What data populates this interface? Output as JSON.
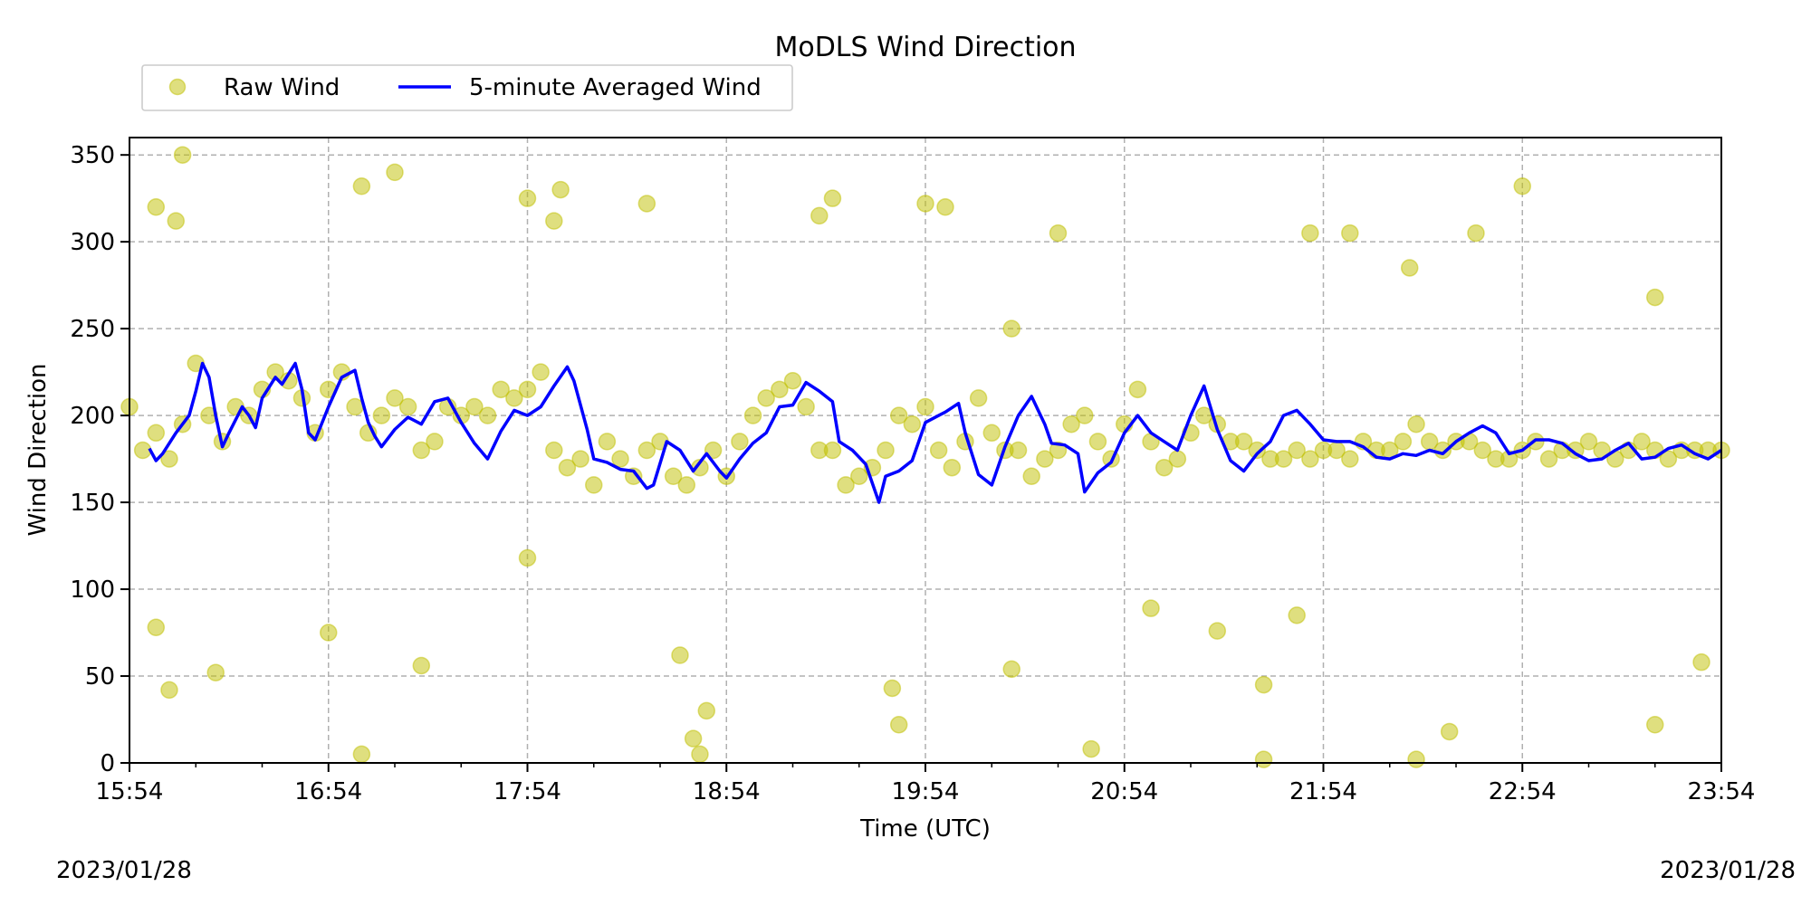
{
  "chart_data": {
    "type": "scatter",
    "title": "MoDLS Wind Direction",
    "xlabel": "Time (UTC)",
    "ylabel": "Wind Direction",
    "x_start_label": "15:54",
    "x_end_label": "23:54",
    "xticks": [
      "15:54",
      "16:54",
      "17:54",
      "18:54",
      "19:54",
      "20:54",
      "21:54",
      "22:54",
      "23:54"
    ],
    "yticks": [
      0,
      50,
      100,
      150,
      200,
      250,
      300,
      350
    ],
    "ylim": [
      0,
      360
    ],
    "grid": true,
    "legend_position": "above-left",
    "date_left": "2023/01/28",
    "date_right": "2023/01/28",
    "series": [
      {
        "name": "Raw Wind",
        "style": "scatter",
        "color": "#bfbf00",
        "values": [
          [
            "15:54",
            205
          ],
          [
            "15:58",
            180
          ],
          [
            "16:02",
            190
          ],
          [
            "16:06",
            175
          ],
          [
            "16:10",
            195
          ],
          [
            "16:14",
            230
          ],
          [
            "16:18",
            200
          ],
          [
            "16:22",
            185
          ],
          [
            "16:26",
            205
          ],
          [
            "16:30",
            200
          ],
          [
            "16:34",
            215
          ],
          [
            "16:38",
            225
          ],
          [
            "16:42",
            220
          ],
          [
            "16:46",
            210
          ],
          [
            "16:50",
            190
          ],
          [
            "16:54",
            215
          ],
          [
            "16:58",
            225
          ],
          [
            "17:02",
            205
          ],
          [
            "17:06",
            190
          ],
          [
            "17:10",
            200
          ],
          [
            "17:14",
            210
          ],
          [
            "17:18",
            205
          ],
          [
            "17:22",
            180
          ],
          [
            "17:26",
            185
          ],
          [
            "17:30",
            205
          ],
          [
            "17:34",
            200
          ],
          [
            "17:38",
            205
          ],
          [
            "17:42",
            200
          ],
          [
            "17:46",
            215
          ],
          [
            "17:50",
            210
          ],
          [
            "17:54",
            215
          ],
          [
            "17:58",
            225
          ],
          [
            "18:02",
            180
          ],
          [
            "18:06",
            170
          ],
          [
            "18:10",
            175
          ],
          [
            "18:14",
            160
          ],
          [
            "18:18",
            185
          ],
          [
            "18:22",
            175
          ],
          [
            "18:26",
            165
          ],
          [
            "18:30",
            180
          ],
          [
            "18:34",
            185
          ],
          [
            "18:38",
            165
          ],
          [
            "18:42",
            160
          ],
          [
            "18:46",
            170
          ],
          [
            "18:50",
            180
          ],
          [
            "18:54",
            165
          ],
          [
            "18:58",
            185
          ],
          [
            "19:02",
            200
          ],
          [
            "19:06",
            210
          ],
          [
            "19:10",
            215
          ],
          [
            "19:14",
            220
          ],
          [
            "19:18",
            205
          ],
          [
            "19:22",
            180
          ],
          [
            "19:26",
            180
          ],
          [
            "19:30",
            160
          ],
          [
            "19:34",
            165
          ],
          [
            "19:38",
            170
          ],
          [
            "19:42",
            180
          ],
          [
            "19:46",
            200
          ],
          [
            "19:50",
            195
          ],
          [
            "19:54",
            205
          ],
          [
            "19:58",
            180
          ],
          [
            "20:02",
            170
          ],
          [
            "20:06",
            185
          ],
          [
            "20:10",
            210
          ],
          [
            "20:14",
            190
          ],
          [
            "20:18",
            180
          ],
          [
            "20:22",
            180
          ],
          [
            "20:26",
            165
          ],
          [
            "20:30",
            175
          ],
          [
            "20:34",
            180
          ],
          [
            "20:38",
            195
          ],
          [
            "20:42",
            200
          ],
          [
            "20:46",
            185
          ],
          [
            "20:50",
            175
          ],
          [
            "20:54",
            195
          ],
          [
            "20:58",
            215
          ],
          [
            "21:02",
            185
          ],
          [
            "21:06",
            170
          ],
          [
            "21:10",
            175
          ],
          [
            "21:14",
            190
          ],
          [
            "21:18",
            200
          ],
          [
            "21:22",
            195
          ],
          [
            "21:26",
            185
          ],
          [
            "21:30",
            185
          ],
          [
            "21:34",
            180
          ],
          [
            "21:38",
            175
          ],
          [
            "21:42",
            175
          ],
          [
            "21:46",
            180
          ],
          [
            "21:50",
            175
          ],
          [
            "21:54",
            180
          ],
          [
            "21:58",
            180
          ],
          [
            "22:02",
            175
          ],
          [
            "22:06",
            185
          ],
          [
            "22:10",
            180
          ],
          [
            "22:14",
            180
          ],
          [
            "22:18",
            185
          ],
          [
            "22:22",
            195
          ],
          [
            "22:26",
            185
          ],
          [
            "22:30",
            180
          ],
          [
            "22:34",
            185
          ],
          [
            "22:38",
            185
          ],
          [
            "22:42",
            180
          ],
          [
            "22:46",
            175
          ],
          [
            "22:50",
            175
          ],
          [
            "22:54",
            180
          ],
          [
            "22:58",
            185
          ],
          [
            "23:02",
            175
          ],
          [
            "23:06",
            180
          ],
          [
            "23:10",
            180
          ],
          [
            "23:14",
            185
          ],
          [
            "23:18",
            180
          ],
          [
            "23:22",
            175
          ],
          [
            "23:26",
            180
          ],
          [
            "23:30",
            185
          ],
          [
            "23:34",
            180
          ],
          [
            "23:38",
            175
          ],
          [
            "23:42",
            180
          ],
          [
            "23:46",
            180
          ],
          [
            "23:50",
            180
          ],
          [
            "23:54",
            180
          ],
          [
            "16:10",
            350
          ],
          [
            "16:02",
            320
          ],
          [
            "16:08",
            312
          ],
          [
            "16:06",
            42
          ],
          [
            "17:04",
            5
          ],
          [
            "17:04",
            332
          ],
          [
            "17:14",
            340
          ],
          [
            "17:54",
            325
          ],
          [
            "18:02",
            312
          ],
          [
            "18:04",
            330
          ],
          [
            "18:30",
            322
          ],
          [
            "18:44",
            14
          ],
          [
            "18:46",
            5
          ],
          [
            "18:48",
            30
          ],
          [
            "19:22",
            315
          ],
          [
            "19:26",
            325
          ],
          [
            "19:54",
            322
          ],
          [
            "20:00",
            320
          ],
          [
            "20:34",
            305
          ],
          [
            "20:44",
            8
          ],
          [
            "21:50",
            305
          ],
          [
            "22:20",
            285
          ],
          [
            "22:40",
            305
          ],
          [
            "22:54",
            332
          ],
          [
            "23:34",
            268
          ],
          [
            "23:48",
            58
          ],
          [
            "23:34",
            22
          ],
          [
            "22:32",
            18
          ],
          [
            "22:22",
            2
          ],
          [
            "21:36",
            2
          ],
          [
            "21:22",
            76
          ],
          [
            "21:36",
            45
          ],
          [
            "16:20",
            52
          ],
          [
            "16:54",
            75
          ],
          [
            "17:22",
            56
          ],
          [
            "16:02",
            78
          ],
          [
            "18:40",
            62
          ],
          [
            "19:44",
            43
          ],
          [
            "19:46",
            22
          ],
          [
            "20:20",
            54
          ],
          [
            "21:02",
            89
          ],
          [
            "21:46",
            85
          ],
          [
            "22:02",
            305
          ],
          [
            "20:20",
            250
          ],
          [
            "17:54",
            118
          ]
        ]
      },
      {
        "name": "5-minute Averaged Wind",
        "style": "line",
        "color": "#0000ff",
        "values": [
          [
            "16:00",
            181
          ],
          [
            "16:02",
            174
          ],
          [
            "16:04",
            178
          ],
          [
            "16:08",
            190
          ],
          [
            "16:12",
            200
          ],
          [
            "16:14",
            214
          ],
          [
            "16:16",
            230
          ],
          [
            "16:18",
            222
          ],
          [
            "16:20",
            200
          ],
          [
            "16:22",
            182
          ],
          [
            "16:24",
            190
          ],
          [
            "16:28",
            205
          ],
          [
            "16:30",
            200
          ],
          [
            "16:32",
            193
          ],
          [
            "16:34",
            210
          ],
          [
            "16:38",
            222
          ],
          [
            "16:40",
            218
          ],
          [
            "16:44",
            230
          ],
          [
            "16:46",
            215
          ],
          [
            "16:48",
            190
          ],
          [
            "16:50",
            186
          ],
          [
            "16:54",
            205
          ],
          [
            "16:58",
            222
          ],
          [
            "17:02",
            226
          ],
          [
            "17:04",
            210
          ],
          [
            "17:06",
            196
          ],
          [
            "17:08",
            188
          ],
          [
            "17:10",
            182
          ],
          [
            "17:14",
            192
          ],
          [
            "17:18",
            199
          ],
          [
            "17:22",
            195
          ],
          [
            "17:26",
            208
          ],
          [
            "17:30",
            210
          ],
          [
            "17:34",
            196
          ],
          [
            "17:38",
            184
          ],
          [
            "17:42",
            175
          ],
          [
            "17:46",
            191
          ],
          [
            "17:50",
            203
          ],
          [
            "17:54",
            200
          ],
          [
            "17:58",
            205
          ],
          [
            "18:02",
            217
          ],
          [
            "18:06",
            228
          ],
          [
            "18:08",
            220
          ],
          [
            "18:12",
            192
          ],
          [
            "18:14",
            175
          ],
          [
            "18:18",
            173
          ],
          [
            "18:22",
            169
          ],
          [
            "18:26",
            168
          ],
          [
            "18:30",
            158
          ],
          [
            "18:32",
            160
          ],
          [
            "18:36",
            185
          ],
          [
            "18:40",
            180
          ],
          [
            "18:44",
            168
          ],
          [
            "18:48",
            178
          ],
          [
            "18:52",
            168
          ],
          [
            "18:54",
            164
          ],
          [
            "18:58",
            175
          ],
          [
            "19:02",
            184
          ],
          [
            "19:06",
            190
          ],
          [
            "19:10",
            205
          ],
          [
            "19:14",
            206
          ],
          [
            "19:18",
            219
          ],
          [
            "19:22",
            214
          ],
          [
            "19:26",
            208
          ],
          [
            "19:28",
            185
          ],
          [
            "19:32",
            180
          ],
          [
            "19:36",
            172
          ],
          [
            "19:40",
            150
          ],
          [
            "19:42",
            165
          ],
          [
            "19:46",
            168
          ],
          [
            "19:50",
            174
          ],
          [
            "19:54",
            196
          ],
          [
            "19:58",
            200
          ],
          [
            "20:00",
            202
          ],
          [
            "20:04",
            207
          ],
          [
            "20:06",
            190
          ],
          [
            "20:10",
            166
          ],
          [
            "20:14",
            160
          ],
          [
            "20:18",
            182
          ],
          [
            "20:22",
            200
          ],
          [
            "20:26",
            211
          ],
          [
            "20:30",
            195
          ],
          [
            "20:32",
            184
          ],
          [
            "20:36",
            183
          ],
          [
            "20:40",
            178
          ],
          [
            "20:42",
            156
          ],
          [
            "20:46",
            167
          ],
          [
            "20:50",
            173
          ],
          [
            "20:54",
            190
          ],
          [
            "20:58",
            200
          ],
          [
            "21:02",
            190
          ],
          [
            "21:06",
            185
          ],
          [
            "21:10",
            180
          ],
          [
            "21:14",
            200
          ],
          [
            "21:18",
            217
          ],
          [
            "21:22",
            192
          ],
          [
            "21:26",
            174
          ],
          [
            "21:30",
            168
          ],
          [
            "21:34",
            178
          ],
          [
            "21:38",
            185
          ],
          [
            "21:42",
            200
          ],
          [
            "21:46",
            203
          ],
          [
            "21:50",
            195
          ],
          [
            "21:54",
            186
          ],
          [
            "21:58",
            185
          ],
          [
            "22:02",
            185
          ],
          [
            "22:06",
            182
          ],
          [
            "22:10",
            176
          ],
          [
            "22:14",
            175
          ],
          [
            "22:18",
            178
          ],
          [
            "22:22",
            177
          ],
          [
            "22:26",
            180
          ],
          [
            "22:30",
            178
          ],
          [
            "22:34",
            185
          ],
          [
            "22:38",
            190
          ],
          [
            "22:42",
            194
          ],
          [
            "22:46",
            190
          ],
          [
            "22:50",
            178
          ],
          [
            "22:54",
            180
          ],
          [
            "22:58",
            186
          ],
          [
            "23:02",
            186
          ],
          [
            "23:06",
            184
          ],
          [
            "23:10",
            178
          ],
          [
            "23:14",
            174
          ],
          [
            "23:18",
            175
          ],
          [
            "23:22",
            180
          ],
          [
            "23:26",
            184
          ],
          [
            "23:30",
            175
          ],
          [
            "23:34",
            176
          ],
          [
            "23:38",
            181
          ],
          [
            "23:42",
            183
          ],
          [
            "23:46",
            178
          ],
          [
            "23:50",
            175
          ],
          [
            "23:54",
            180
          ]
        ]
      }
    ]
  }
}
